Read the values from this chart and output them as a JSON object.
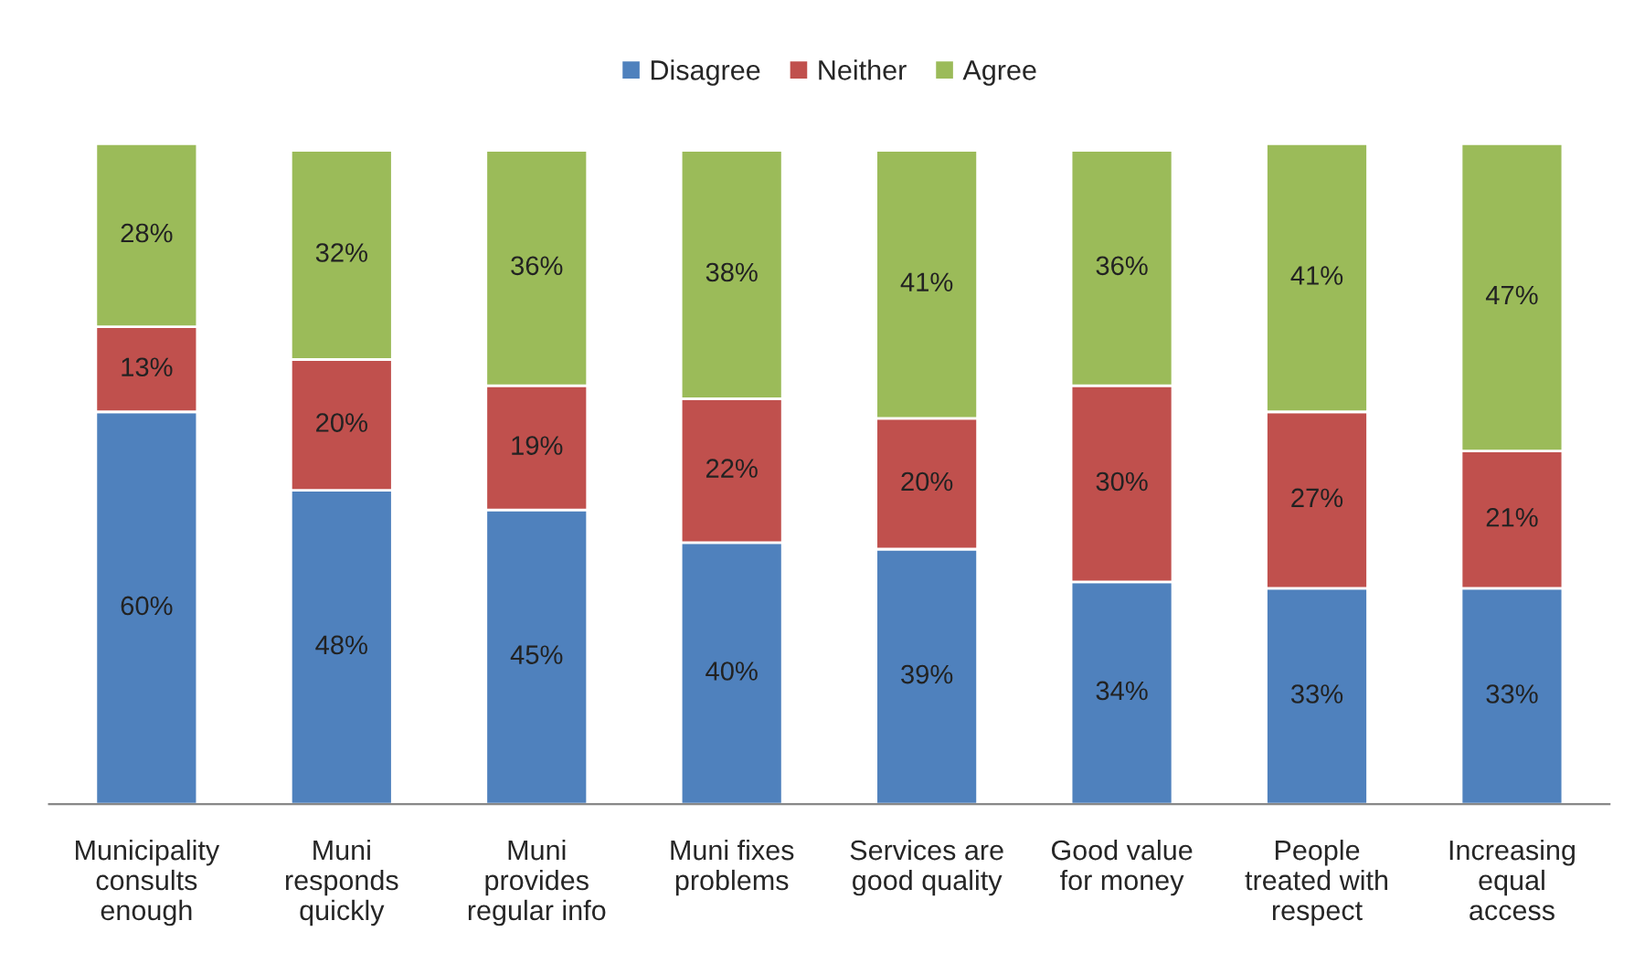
{
  "chart_data": {
    "type": "bar",
    "stacked": true,
    "legend": "top",
    "grid": false,
    "categories": [
      "Municipality\nconsults\nenough",
      "Muni\nresponds\nquickly",
      "Muni\nprovides\nregular info",
      "Muni fixes\nproblems",
      "Services are\ngood quality",
      "Good value\nfor money",
      "People\ntreated with\nrespect",
      "Increasing\nequal\naccess"
    ],
    "series": [
      {
        "name": "Disagree",
        "color": "#4f81bd",
        "values": [
          60,
          48,
          45,
          40,
          39,
          34,
          33,
          33
        ],
        "value_labels": [
          "60%",
          "48%",
          "45%",
          "40%",
          "39%",
          "34%",
          "33%",
          "33%"
        ]
      },
      {
        "name": "Neither",
        "color": "#c0504d",
        "values": [
          13,
          20,
          19,
          22,
          20,
          30,
          27,
          21
        ],
        "value_labels": [
          "13%",
          "20%",
          "19%",
          "22%",
          "20%",
          "30%",
          "27%",
          "21%"
        ]
      },
      {
        "name": "Agree",
        "color": "#9bbb59",
        "values": [
          28,
          32,
          36,
          38,
          41,
          36,
          41,
          47
        ],
        "value_labels": [
          "28%",
          "32%",
          "36%",
          "38%",
          "41%",
          "36%",
          "41%",
          "47%"
        ]
      }
    ]
  }
}
